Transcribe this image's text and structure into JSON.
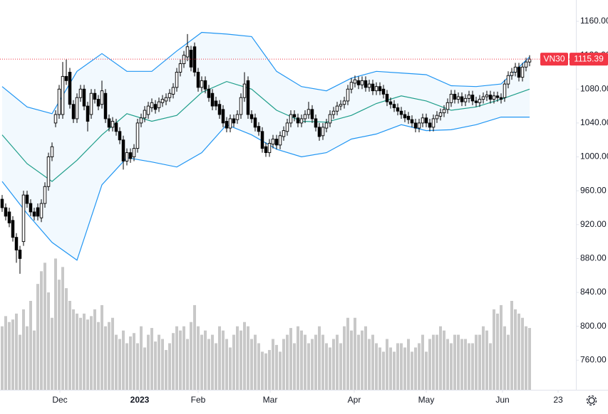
{
  "chart_data": {
    "type": "candlestick",
    "symbol": "VN30",
    "xlim": [
      -0.6,
      161
    ],
    "ylim": [
      725,
      1185.2
    ],
    "xticks": [
      {
        "value": 16.2,
        "label": "Dec"
      },
      {
        "value": 38.6,
        "label": "2023"
      },
      {
        "value": 55,
        "label": "Feb"
      },
      {
        "value": 75.2,
        "label": "Mar"
      },
      {
        "value": 98.8,
        "label": "Apr"
      },
      {
        "value": 119,
        "label": "May"
      },
      {
        "value": 140.4,
        "label": "Jun"
      },
      {
        "value": 156,
        "label": "23"
      }
    ],
    "yticks": [
      {
        "value": 760,
        "label": "760.00"
      },
      {
        "value": 800,
        "label": "800.00"
      },
      {
        "value": 840,
        "label": "840.00"
      },
      {
        "value": 880,
        "label": "880.00"
      },
      {
        "value": 920,
        "label": "920.00"
      },
      {
        "value": 960,
        "label": "960.00"
      },
      {
        "value": 1000,
        "label": "1000.00"
      },
      {
        "value": 1040,
        "label": "1040.00"
      },
      {
        "value": 1080,
        "label": "1080.00"
      },
      {
        "value": 1120,
        "label": "1120.00"
      },
      {
        "value": 1160,
        "label": "1160.00"
      }
    ],
    "up_color": "#ffffff",
    "down_color": "#000000",
    "volume_color": "#c8c8c8",
    "last_price_color": "#f23645",
    "open": [
      950,
      940,
      935,
      925,
      905,
      890,
      900,
      955,
      945,
      935,
      940,
      928,
      945,
      965,
      1000,
      1040,
      1050,
      1050,
      1095,
      1100,
      1062,
      1045,
      1070,
      1080,
      1060,
      1050,
      1075,
      1068,
      1062,
      1075,
      1045,
      1035,
      1040,
      1030,
      1020,
      995,
      1005,
      1000,
      1010,
      1040,
      1046,
      1050,
      1058,
      1062,
      1058,
      1064,
      1066,
      1070,
      1074,
      1082,
      1100,
      1110,
      1118,
      1126,
      1130,
      1100,
      1082,
      1090,
      1080,
      1075,
      1066,
      1062,
      1056,
      1042,
      1034,
      1045,
      1044,
      1050,
      1070,
      1090,
      1050,
      1046,
      1036,
      1030,
      1012,
      1005,
      1015,
      1021,
      1014,
      1024,
      1030,
      1040,
      1050,
      1046,
      1040,
      1045,
      1050,
      1056,
      1045,
      1035,
      1025,
      1034,
      1040,
      1050,
      1054,
      1060,
      1062,
      1066,
      1080,
      1087,
      1090,
      1085,
      1090,
      1082,
      1086,
      1078,
      1083,
      1080,
      1074,
      1065,
      1062,
      1058,
      1054,
      1050,
      1048,
      1044,
      1040,
      1034,
      1040,
      1046,
      1040,
      1035,
      1045,
      1048,
      1052,
      1056,
      1064,
      1074,
      1068,
      1071,
      1065,
      1069,
      1073,
      1066,
      1064,
      1068,
      1071,
      1073,
      1068,
      1072,
      1070,
      1070,
      1086,
      1096,
      1100,
      1106,
      1094,
      1106,
      1112
    ],
    "high": [
      955,
      945,
      940,
      930,
      910,
      895,
      960,
      960,
      950,
      940,
      945,
      950,
      970,
      1005,
      1017,
      1055,
      1085,
      1112,
      1115,
      1105,
      1067,
      1075,
      1085,
      1085,
      1065,
      1080,
      1080,
      1073,
      1090,
      1080,
      1050,
      1047,
      1045,
      1035,
      1025,
      1010,
      1010,
      1015,
      1045,
      1051,
      1060,
      1065,
      1069,
      1067,
      1070,
      1073,
      1075,
      1080,
      1087,
      1105,
      1115,
      1125,
      1145,
      1131,
      1135,
      1105,
      1095,
      1095,
      1085,
      1080,
      1071,
      1067,
      1061,
      1047,
      1050,
      1050,
      1055,
      1075,
      1100,
      1095,
      1055,
      1051,
      1041,
      1035,
      1017,
      1021,
      1026,
      1026,
      1030,
      1036,
      1045,
      1055,
      1055,
      1051,
      1050,
      1055,
      1065,
      1061,
      1050,
      1040,
      1040,
      1045,
      1055,
      1059,
      1065,
      1067,
      1071,
      1085,
      1093,
      1096,
      1095,
      1095,
      1095,
      1091,
      1091,
      1088,
      1088,
      1085,
      1079,
      1070,
      1067,
      1063,
      1059,
      1055,
      1053,
      1049,
      1045,
      1045,
      1051,
      1051,
      1045,
      1050,
      1054,
      1057,
      1061,
      1069,
      1079,
      1079,
      1076,
      1076,
      1074,
      1078,
      1078,
      1071,
      1073,
      1076,
      1078,
      1078,
      1077,
      1077,
      1075,
      1091,
      1101,
      1105,
      1111,
      1111,
      1111,
      1117,
      1120
    ],
    "low": [
      935,
      925,
      917,
      900,
      875,
      862,
      895,
      940,
      930,
      925,
      925,
      923,
      940,
      960,
      995,
      1035,
      1045,
      1045,
      1085,
      1057,
      1040,
      1040,
      1065,
      1055,
      1030,
      1045,
      1063,
      1055,
      1057,
      1040,
      1030,
      1030,
      1025,
      1015,
      985,
      990,
      993,
      995,
      1005,
      1035,
      1041,
      1045,
      1053,
      1051,
      1053,
      1059,
      1061,
      1065,
      1069,
      1077,
      1095,
      1105,
      1113,
      1101,
      1095,
      1077,
      1077,
      1075,
      1065,
      1055,
      1055,
      1045,
      1035,
      1029,
      1029,
      1035,
      1039,
      1045,
      1065,
      1045,
      1040,
      1030,
      1025,
      1005,
      1000,
      1000,
      1010,
      1009,
      1009,
      1019,
      1025,
      1035,
      1042,
      1035,
      1035,
      1040,
      1045,
      1040,
      1030,
      1019,
      1020,
      1029,
      1035,
      1045,
      1049,
      1055,
      1057,
      1061,
      1075,
      1082,
      1080,
      1080,
      1077,
      1077,
      1073,
      1073,
      1073,
      1069,
      1060,
      1057,
      1053,
      1049,
      1045,
      1041,
      1039,
      1035,
      1029,
      1029,
      1035,
      1035,
      1030,
      1030,
      1040,
      1043,
      1047,
      1051,
      1059,
      1063,
      1063,
      1060,
      1060,
      1064,
      1061,
      1059,
      1059,
      1063,
      1066,
      1063,
      1063,
      1065,
      1063,
      1065,
      1081,
      1091,
      1095,
      1089,
      1089,
      1101,
      1107
    ],
    "close": [
      940,
      930,
      922,
      905,
      890,
      880,
      955,
      945,
      935,
      930,
      930,
      945,
      965,
      1000,
      1012,
      1050,
      1080,
      1095,
      1090,
      1062,
      1045,
      1070,
      1080,
      1060,
      1042,
      1075,
      1068,
      1060,
      1078,
      1045,
      1035,
      1042,
      1030,
      1020,
      995,
      1005,
      998,
      1010,
      1040,
      1046,
      1055,
      1060,
      1064,
      1056,
      1065,
      1068,
      1070,
      1075,
      1082,
      1100,
      1110,
      1120,
      1130,
      1106,
      1100,
      1082,
      1090,
      1080,
      1070,
      1060,
      1060,
      1050,
      1040,
      1034,
      1045,
      1040,
      1050,
      1070,
      1086,
      1050,
      1045,
      1035,
      1030,
      1010,
      1005,
      1016,
      1021,
      1014,
      1025,
      1031,
      1040,
      1050,
      1047,
      1040,
      1045,
      1050,
      1056,
      1045,
      1035,
      1024,
      1035,
      1040,
      1050,
      1054,
      1060,
      1062,
      1066,
      1080,
      1088,
      1091,
      1085,
      1090,
      1082,
      1086,
      1078,
      1083,
      1078,
      1074,
      1065,
      1062,
      1058,
      1054,
      1050,
      1046,
      1044,
      1040,
      1034,
      1040,
      1046,
      1040,
      1035,
      1045,
      1049,
      1052,
      1056,
      1064,
      1074,
      1068,
      1071,
      1065,
      1069,
      1073,
      1066,
      1064,
      1068,
      1071,
      1073,
      1068,
      1072,
      1070,
      1068,
      1086,
      1096,
      1100,
      1106,
      1094,
      1106,
      1112,
      1115.39
    ],
    "volume": [
      800,
      812,
      805,
      808,
      815,
      790,
      820,
      800,
      830,
      795,
      850,
      865,
      875,
      840,
      810,
      880,
      855,
      870,
      845,
      830,
      820,
      815,
      810,
      815,
      808,
      812,
      820,
      805,
      825,
      800,
      805,
      810,
      790,
      785,
      795,
      780,
      788,
      792,
      780,
      800,
      775,
      790,
      798,
      782,
      790,
      785,
      772,
      780,
      792,
      800,
      795,
      800,
      785,
      805,
      825,
      800,
      790,
      795,
      785,
      790,
      780,
      800,
      795,
      785,
      775,
      790,
      800,
      795,
      805,
      800,
      785,
      790,
      780,
      770,
      768,
      772,
      785,
      778,
      770,
      785,
      790,
      798,
      780,
      800,
      795,
      790,
      780,
      785,
      790,
      800,
      790,
      780,
      775,
      785,
      790,
      780,
      800,
      810,
      795,
      810,
      790,
      795,
      800,
      785,
      790,
      780,
      775,
      770,
      785,
      775,
      770,
      780,
      780,
      775,
      785,
      770,
      775,
      780,
      790,
      770,
      785,
      790,
      790,
      800,
      795,
      785,
      780,
      790,
      790,
      785,
      785,
      780,
      780,
      790,
      790,
      800,
      795,
      780,
      820,
      815,
      825,
      800,
      790,
      830,
      820,
      815,
      810,
      800,
      798
    ],
    "bands": {
      "upper_color": "#2196f3",
      "middle_color": "#1e9e8a",
      "fill": "#2196f3",
      "x": [
        0,
        7,
        14,
        21,
        28,
        35,
        42,
        49,
        56,
        63,
        70,
        77,
        84,
        91,
        98,
        105,
        112,
        119,
        126,
        133,
        140,
        148
      ],
      "upper": [
        1083,
        1059,
        1051,
        1101,
        1122,
        1101,
        1101,
        1125,
        1147,
        1145,
        1142,
        1101,
        1083,
        1078,
        1093,
        1101,
        1099,
        1097,
        1084,
        1083,
        1086,
        1118
      ],
      "middle": [
        1026,
        992,
        971,
        996,
        1026,
        1051,
        1042,
        1049,
        1076,
        1089,
        1080,
        1055,
        1042,
        1041,
        1049,
        1063,
        1072,
        1066,
        1055,
        1059,
        1068,
        1080
      ],
      "lower": [
        971,
        933,
        899,
        878,
        967,
        999,
        994,
        988,
        1005,
        1038,
        1026,
        1009,
        1000,
        1005,
        1021,
        1027,
        1038,
        1031,
        1032,
        1038,
        1047,
        1047
      ]
    }
  }
}
